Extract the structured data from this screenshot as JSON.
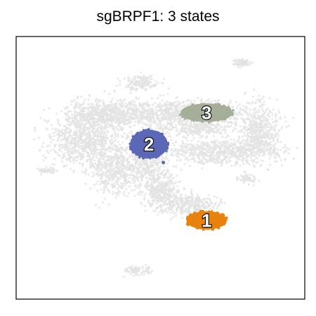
{
  "chart_data": {
    "type": "scatter",
    "title": "sgBRPF1: 3 states",
    "xlabel": "",
    "ylabel": "",
    "grid": false,
    "background_points_color": "#e3e3e3",
    "states": [
      {
        "label": "1",
        "color": "#e8820c",
        "cx": 0.66,
        "cy": 0.7,
        "rx": 0.07,
        "ry": 0.035
      },
      {
        "label": "2",
        "color": "#5a68b5",
        "cx": 0.46,
        "cy": 0.41,
        "rx": 0.065,
        "ry": 0.055
      },
      {
        "label": "3",
        "color": "#a6ae99",
        "cx": 0.66,
        "cy": 0.29,
        "rx": 0.09,
        "ry": 0.035
      }
    ]
  }
}
